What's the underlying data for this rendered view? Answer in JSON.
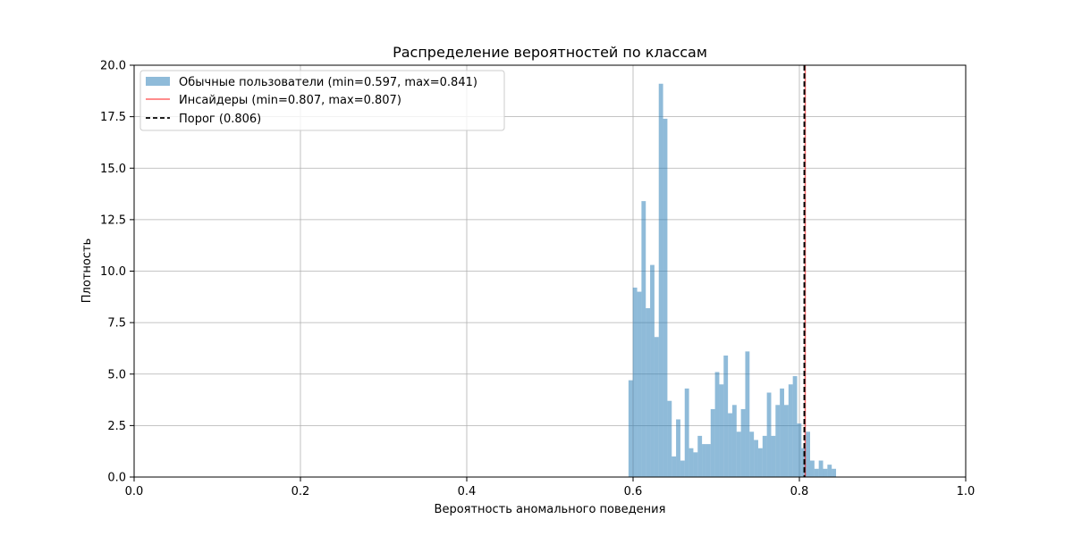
{
  "chart_data": {
    "type": "bar",
    "title": "Распределение вероятностей по классам",
    "xlabel": "Вероятность аномального поведения",
    "ylabel": "Плотность",
    "xlim": [
      0.0,
      1.0
    ],
    "ylim": [
      0.0,
      20.0
    ],
    "x_ticks": [
      "0.0",
      "0.2",
      "0.4",
      "0.6",
      "0.8",
      "1.0"
    ],
    "y_ticks": [
      "0.0",
      "2.5",
      "5.0",
      "7.5",
      "10.0",
      "12.5",
      "15.0",
      "17.5",
      "20.0"
    ],
    "grid": true,
    "legend_position": "top-left",
    "histogram": {
      "name": "Обычные пользователи (min=0.597, max=0.841)",
      "color": "#1f77b4",
      "bin_start": 0.5945,
      "bin_width": 0.0052,
      "values": [
        4.7,
        9.2,
        9.0,
        13.4,
        8.2,
        10.3,
        6.8,
        19.1,
        17.4,
        3.7,
        1.0,
        2.8,
        0.8,
        4.3,
        1.4,
        1.2,
        2.0,
        1.6,
        1.6,
        3.3,
        5.1,
        4.5,
        5.9,
        3.1,
        3.5,
        2.2,
        3.3,
        6.1,
        2.2,
        1.8,
        1.4,
        2.0,
        4.1,
        2.0,
        3.5,
        4.3,
        3.5,
        4.5,
        4.9,
        2.6,
        1.4,
        2.2,
        0.8,
        0.4,
        0.8,
        0.4,
        0.6,
        0.4
      ]
    },
    "lines": [
      {
        "name": "Инсайдеры (min=0.807, max=0.807)",
        "x": 0.807,
        "color": "#ff0000",
        "style": "solid"
      },
      {
        "name": "Порог (0.806)",
        "x": 0.806,
        "color": "#000000",
        "style": "dashed"
      }
    ]
  }
}
